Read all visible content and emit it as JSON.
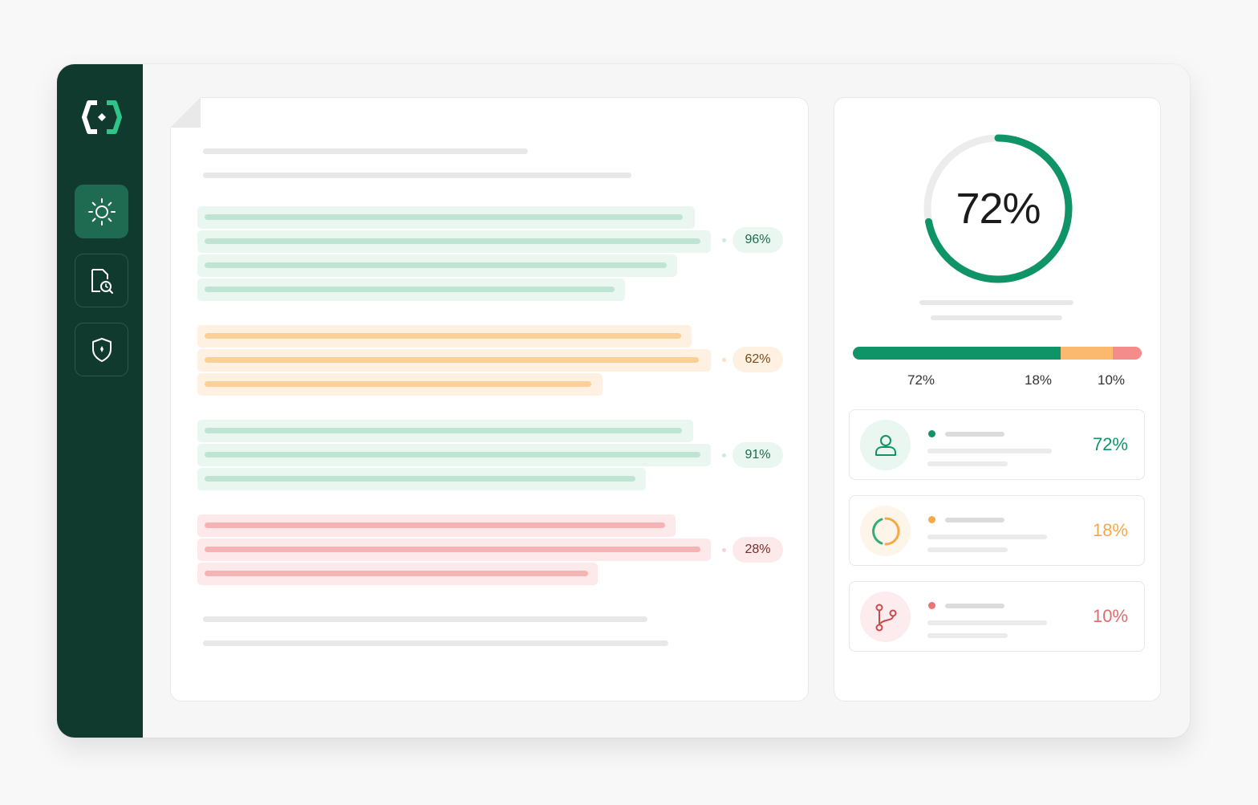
{
  "colors": {
    "sidebar": "#0f3a2d",
    "accent_green": "#0e9466",
    "orange": "#f5a947",
    "red": "#e97577",
    "green_highlight": "#eaf7f1",
    "orange_highlight": "#fff1e2",
    "red_highlight": "#fde9e9"
  },
  "sidebar": {
    "logo_icon": "brackets-diamond-logo-icon",
    "nav": [
      {
        "icon": "sun-icon",
        "active": true
      },
      {
        "icon": "document-search-icon",
        "active": false
      },
      {
        "icon": "shield-icon",
        "active": false
      }
    ]
  },
  "document": {
    "sections": [
      {
        "badge": "96%",
        "tone": "green"
      },
      {
        "badge": "62%",
        "tone": "orange"
      },
      {
        "badge": "91%",
        "tone": "green"
      },
      {
        "badge": "28%",
        "tone": "red"
      }
    ]
  },
  "summary": {
    "gauge_value": "72%",
    "gauge_fraction": 0.72,
    "breakdown": [
      {
        "label": "72%",
        "value": 72,
        "color": "#0e9466"
      },
      {
        "label": "18%",
        "value": 18,
        "color": "#fbb86f"
      },
      {
        "label": "10%",
        "value": 10,
        "color": "#f48c8c"
      }
    ],
    "cards": [
      {
        "icon": "user-icon",
        "value": "72%",
        "color": "#0e9466"
      },
      {
        "icon": "partial-circle-icon",
        "value": "18%",
        "color": "#f5a947"
      },
      {
        "icon": "branch-icon",
        "value": "10%",
        "color": "#e06c6e"
      }
    ]
  }
}
